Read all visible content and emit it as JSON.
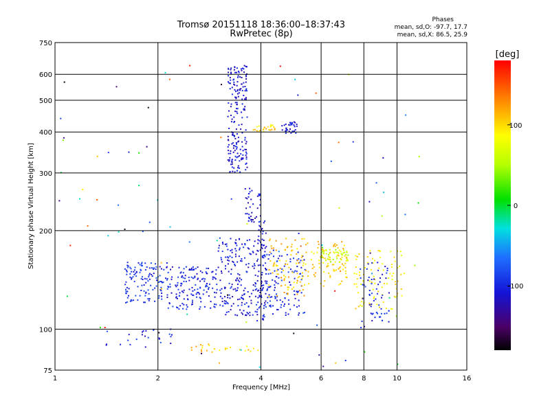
{
  "chart_data": {
    "type": "scatter",
    "title": "Tromsø 20151118 18:36:00–18:37:43",
    "subtitle": "RwPretec (8p)",
    "xlabel": "Frequency [MHz]",
    "ylabel": "Stationary phase Virtual Height [km]",
    "x_scale": "log",
    "y_scale": "log",
    "xlim": [
      1,
      16
    ],
    "ylim": [
      75,
      750
    ],
    "x_ticks": [
      1,
      2,
      4,
      6,
      8,
      10,
      16
    ],
    "y_ticks": [
      75,
      100,
      200,
      300,
      400,
      500,
      600,
      750
    ],
    "grid": true,
    "stats": {
      "heading": "Phases",
      "line_o": "mean, sd,O: -97.7, 17.7",
      "line_x": "mean, sd,X:  86.5, 25.9"
    },
    "colorbar": {
      "label": "[deg]",
      "min": -180,
      "max": 180,
      "ticks": [
        100,
        0,
        -100
      ],
      "colormap": "rainbow"
    },
    "clusters": [
      {
        "f": [
          1.6,
          2.1
        ],
        "h": [
          120,
          160
        ],
        "phase": -95,
        "n": 120
      },
      {
        "f": [
          2.1,
          3.0
        ],
        "h": [
          115,
          155
        ],
        "phase": -100,
        "n": 160
      },
      {
        "f": [
          3.0,
          3.9
        ],
        "h": [
          110,
          190
        ],
        "phase": -105,
        "n": 180
      },
      {
        "f": [
          3.2,
          3.65
        ],
        "h": [
          300,
          640
        ],
        "phase": -110,
        "n": 200
      },
      {
        "f": [
          3.9,
          4.15
        ],
        "h": [
          105,
          215
        ],
        "phase": -108,
        "n": 90
      },
      {
        "f": [
          4.1,
          5.4
        ],
        "h": [
          110,
          175
        ],
        "phase": -95,
        "n": 120
      },
      {
        "f": [
          4.2,
          5.4
        ],
        "h": [
          125,
          190
        ],
        "phase": 110,
        "n": 90
      },
      {
        "f": [
          5.4,
          7.2
        ],
        "h": [
          135,
          185
        ],
        "phase": 105,
        "n": 90
      },
      {
        "f": [
          6.0,
          7.2
        ],
        "h": [
          160,
          175
        ],
        "phase": 60,
        "n": 40
      },
      {
        "f": [
          3.8,
          4.4
        ],
        "h": [
          400,
          420
        ],
        "phase": 100,
        "n": 25
      },
      {
        "f": [
          4.6,
          5.1
        ],
        "h": [
          395,
          430
        ],
        "phase": -110,
        "n": 35
      },
      {
        "f": [
          7.5,
          10.5
        ],
        "h": [
          115,
          175
        ],
        "phase": 90,
        "n": 90
      },
      {
        "f": [
          7.8,
          9.5
        ],
        "h": [
          100,
          160
        ],
        "phase": -100,
        "n": 60
      },
      {
        "f": [
          1.4,
          2.2
        ],
        "h": [
          88,
          100
        ],
        "phase": -100,
        "n": 25
      },
      {
        "f": [
          2.5,
          4.0
        ],
        "h": [
          85,
          90
        ],
        "phase": 105,
        "n": 25
      },
      {
        "f": [
          3.6,
          4.0
        ],
        "h": [
          210,
          270
        ],
        "phase": -110,
        "n": 40
      },
      {
        "f": [
          1.0,
          12.0
        ],
        "h": [
          75,
          650
        ],
        "phase": 0,
        "n": 90
      }
    ]
  }
}
